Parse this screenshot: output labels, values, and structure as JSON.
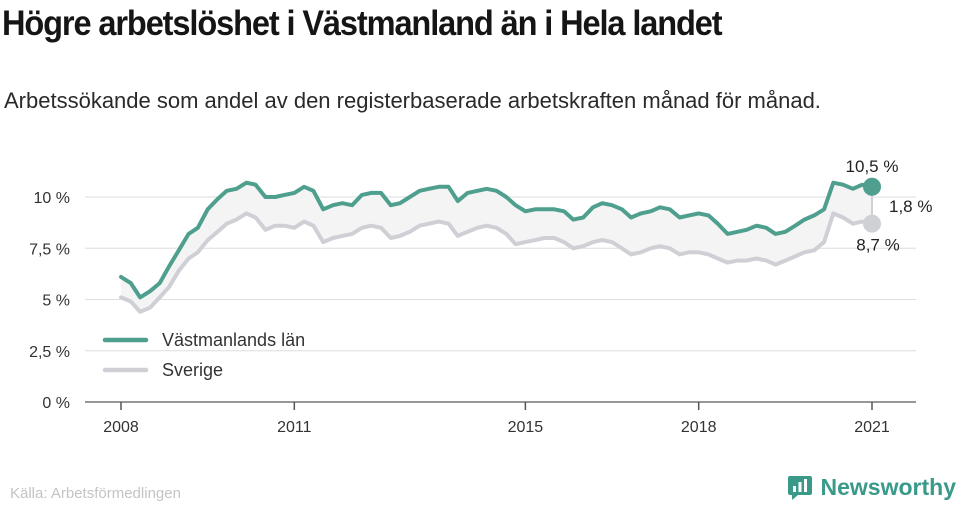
{
  "title": "Högre arbetslöshet i Västmanland än i Hela landet",
  "subtitle": "Arbetssökande som andel av den registerbaserade arbetskraften månad för månad.",
  "source": "Källa: Arbetsförmedlingen",
  "brand": {
    "name": "Newsworthy",
    "icon": "newsworthy-logo-icon",
    "color": "#3a9a8a"
  },
  "chart_data": {
    "type": "line",
    "title": "Högre arbetslöshet i Västmanland än i Hela landet",
    "subtitle": "Arbetssökande som andel av den registerbaserade arbetskraften månad för månad.",
    "xlabel": "",
    "ylabel": "",
    "xlim": [
      2008.0,
      2021.75
    ],
    "ylim": [
      0,
      10.5
    ],
    "x_ticks": [
      2008,
      2011,
      2015,
      2018,
      2021
    ],
    "x_tick_labels": [
      "2008",
      "2011",
      "2015",
      "2018",
      "2021"
    ],
    "y_ticks": [
      0,
      2.5,
      5,
      7.5,
      10
    ],
    "y_tick_labels": [
      "0 %",
      "2,5 %",
      "5 %",
      "7,5 %",
      "10 %"
    ],
    "grid": "horizontal",
    "legend_position": "bottom-left",
    "series": [
      {
        "name": "Västmanlands län",
        "color": "#4f9f8f",
        "points": [
          [
            2008.0,
            6.1
          ],
          [
            2008.17,
            5.8
          ],
          [
            2008.33,
            5.1
          ],
          [
            2008.5,
            5.4
          ],
          [
            2008.67,
            5.8
          ],
          [
            2008.83,
            6.6
          ],
          [
            2009.0,
            7.4
          ],
          [
            2009.17,
            8.2
          ],
          [
            2009.33,
            8.5
          ],
          [
            2009.5,
            9.4
          ],
          [
            2009.67,
            9.9
          ],
          [
            2009.83,
            10.3
          ],
          [
            2010.0,
            10.4
          ],
          [
            2010.17,
            10.7
          ],
          [
            2010.33,
            10.6
          ],
          [
            2010.5,
            10.0
          ],
          [
            2010.67,
            10.0
          ],
          [
            2010.83,
            10.1
          ],
          [
            2011.0,
            10.2
          ],
          [
            2011.17,
            10.5
          ],
          [
            2011.33,
            10.3
          ],
          [
            2011.5,
            9.4
          ],
          [
            2011.67,
            9.6
          ],
          [
            2011.83,
            9.7
          ],
          [
            2012.0,
            9.6
          ],
          [
            2012.17,
            10.1
          ],
          [
            2012.33,
            10.2
          ],
          [
            2012.5,
            10.2
          ],
          [
            2012.67,
            9.6
          ],
          [
            2012.83,
            9.7
          ],
          [
            2013.0,
            10.0
          ],
          [
            2013.17,
            10.3
          ],
          [
            2013.33,
            10.4
          ],
          [
            2013.5,
            10.5
          ],
          [
            2013.67,
            10.5
          ],
          [
            2013.83,
            9.8
          ],
          [
            2014.0,
            10.2
          ],
          [
            2014.17,
            10.3
          ],
          [
            2014.33,
            10.4
          ],
          [
            2014.5,
            10.3
          ],
          [
            2014.67,
            10.0
          ],
          [
            2014.83,
            9.6
          ],
          [
            2015.0,
            9.3
          ],
          [
            2015.17,
            9.4
          ],
          [
            2015.33,
            9.4
          ],
          [
            2015.5,
            9.4
          ],
          [
            2015.67,
            9.3
          ],
          [
            2015.83,
            8.9
          ],
          [
            2016.0,
            9.0
          ],
          [
            2016.17,
            9.5
          ],
          [
            2016.33,
            9.7
          ],
          [
            2016.5,
            9.6
          ],
          [
            2016.67,
            9.4
          ],
          [
            2016.83,
            9.0
          ],
          [
            2017.0,
            9.2
          ],
          [
            2017.17,
            9.3
          ],
          [
            2017.33,
            9.5
          ],
          [
            2017.5,
            9.4
          ],
          [
            2017.67,
            9.0
          ],
          [
            2017.83,
            9.1
          ],
          [
            2018.0,
            9.2
          ],
          [
            2018.17,
            9.1
          ],
          [
            2018.33,
            8.7
          ],
          [
            2018.5,
            8.2
          ],
          [
            2018.67,
            8.3
          ],
          [
            2018.83,
            8.4
          ],
          [
            2019.0,
            8.6
          ],
          [
            2019.17,
            8.5
          ],
          [
            2019.33,
            8.2
          ],
          [
            2019.5,
            8.3
          ],
          [
            2019.67,
            8.6
          ],
          [
            2019.83,
            8.9
          ],
          [
            2020.0,
            9.1
          ],
          [
            2020.17,
            9.4
          ],
          [
            2020.33,
            10.7
          ],
          [
            2020.5,
            10.6
          ],
          [
            2020.67,
            10.4
          ],
          [
            2020.83,
            10.6
          ],
          [
            2021.0,
            10.5
          ]
        ],
        "end_label": "10,5 %"
      },
      {
        "name": "Sverige",
        "color": "#cfcfd6",
        "points": [
          [
            2008.0,
            5.1
          ],
          [
            2008.17,
            4.9
          ],
          [
            2008.33,
            4.4
          ],
          [
            2008.5,
            4.6
          ],
          [
            2008.67,
            5.1
          ],
          [
            2008.83,
            5.6
          ],
          [
            2009.0,
            6.4
          ],
          [
            2009.17,
            7.0
          ],
          [
            2009.33,
            7.3
          ],
          [
            2009.5,
            7.9
          ],
          [
            2009.67,
            8.3
          ],
          [
            2009.83,
            8.7
          ],
          [
            2010.0,
            8.9
          ],
          [
            2010.17,
            9.2
          ],
          [
            2010.33,
            9.0
          ],
          [
            2010.5,
            8.4
          ],
          [
            2010.67,
            8.6
          ],
          [
            2010.83,
            8.6
          ],
          [
            2011.0,
            8.5
          ],
          [
            2011.17,
            8.8
          ],
          [
            2011.33,
            8.6
          ],
          [
            2011.5,
            7.8
          ],
          [
            2011.67,
            8.0
          ],
          [
            2011.83,
            8.1
          ],
          [
            2012.0,
            8.2
          ],
          [
            2012.17,
            8.5
          ],
          [
            2012.33,
            8.6
          ],
          [
            2012.5,
            8.5
          ],
          [
            2012.67,
            8.0
          ],
          [
            2012.83,
            8.1
          ],
          [
            2013.0,
            8.3
          ],
          [
            2013.17,
            8.6
          ],
          [
            2013.33,
            8.7
          ],
          [
            2013.5,
            8.8
          ],
          [
            2013.67,
            8.7
          ],
          [
            2013.83,
            8.1
          ],
          [
            2014.0,
            8.3
          ],
          [
            2014.17,
            8.5
          ],
          [
            2014.33,
            8.6
          ],
          [
            2014.5,
            8.5
          ],
          [
            2014.67,
            8.2
          ],
          [
            2014.83,
            7.7
          ],
          [
            2015.0,
            7.8
          ],
          [
            2015.17,
            7.9
          ],
          [
            2015.33,
            8.0
          ],
          [
            2015.5,
            8.0
          ],
          [
            2015.67,
            7.8
          ],
          [
            2015.83,
            7.5
          ],
          [
            2016.0,
            7.6
          ],
          [
            2016.17,
            7.8
          ],
          [
            2016.33,
            7.9
          ],
          [
            2016.5,
            7.8
          ],
          [
            2016.67,
            7.5
          ],
          [
            2016.83,
            7.2
          ],
          [
            2017.0,
            7.3
          ],
          [
            2017.17,
            7.5
          ],
          [
            2017.33,
            7.6
          ],
          [
            2017.5,
            7.5
          ],
          [
            2017.67,
            7.2
          ],
          [
            2017.83,
            7.3
          ],
          [
            2018.0,
            7.3
          ],
          [
            2018.17,
            7.2
          ],
          [
            2018.33,
            7.0
          ],
          [
            2018.5,
            6.8
          ],
          [
            2018.67,
            6.9
          ],
          [
            2018.83,
            6.9
          ],
          [
            2019.0,
            7.0
          ],
          [
            2019.17,
            6.9
          ],
          [
            2019.33,
            6.7
          ],
          [
            2019.5,
            6.9
          ],
          [
            2019.67,
            7.1
          ],
          [
            2019.83,
            7.3
          ],
          [
            2020.0,
            7.4
          ],
          [
            2020.17,
            7.8
          ],
          [
            2020.33,
            9.2
          ],
          [
            2020.5,
            9.0
          ],
          [
            2020.67,
            8.7
          ],
          [
            2020.83,
            8.8
          ],
          [
            2021.0,
            8.7
          ]
        ],
        "end_label": "8,7 %"
      }
    ],
    "difference_label": "1,8 %",
    "band_color": "#f4f4f4"
  }
}
